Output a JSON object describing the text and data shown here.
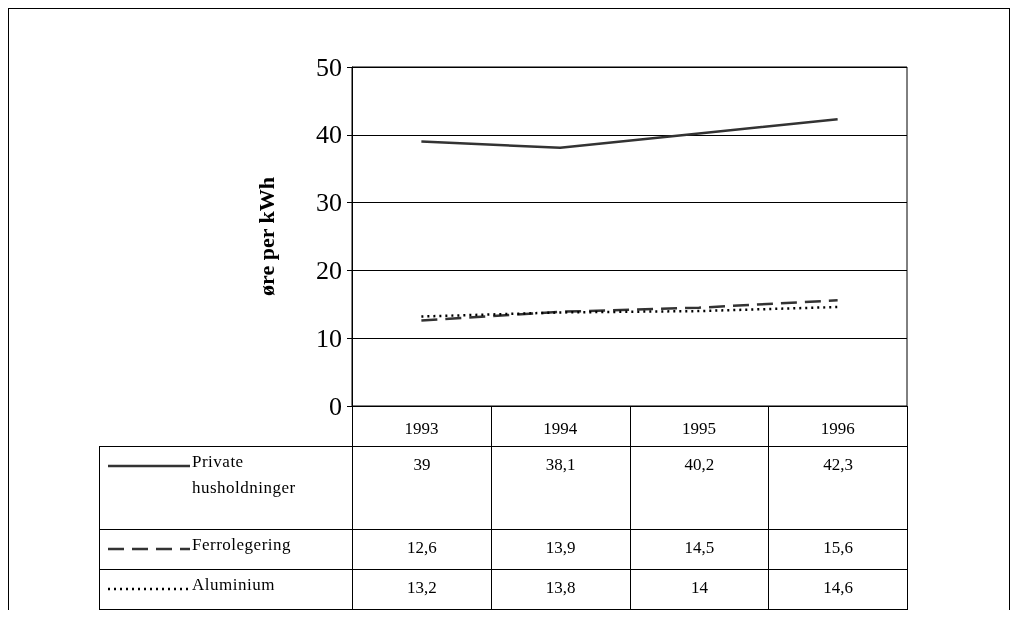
{
  "chart_data": {
    "type": "line",
    "ylabel": "øre per kWh",
    "categories": [
      "1993",
      "1994",
      "1995",
      "1996"
    ],
    "series": [
      {
        "name": "Private husholdninger",
        "color": "#333333",
        "line_style": "solid",
        "values": [
          39,
          38.1,
          40.2,
          42.3
        ],
        "value_labels": [
          "39",
          "38,1",
          "40,2",
          "42,3"
        ]
      },
      {
        "name": "Ferrolegering",
        "color": "#333333",
        "line_style": "dashed",
        "values": [
          12.6,
          13.9,
          14.5,
          15.6
        ],
        "value_labels": [
          "12,6",
          "13,9",
          "14,5",
          "15,6"
        ]
      },
      {
        "name": "Aluminium",
        "color": "#000000",
        "line_style": "dotted",
        "values": [
          13.2,
          13.8,
          14,
          14.6
        ],
        "value_labels": [
          "13,2",
          "13,8",
          "14",
          "14,6"
        ]
      }
    ],
    "ylim": [
      0,
      50
    ],
    "yticks": [
      0,
      10,
      20,
      30,
      40,
      50
    ],
    "grid": "y",
    "marker": "none",
    "legend": "bottom"
  }
}
